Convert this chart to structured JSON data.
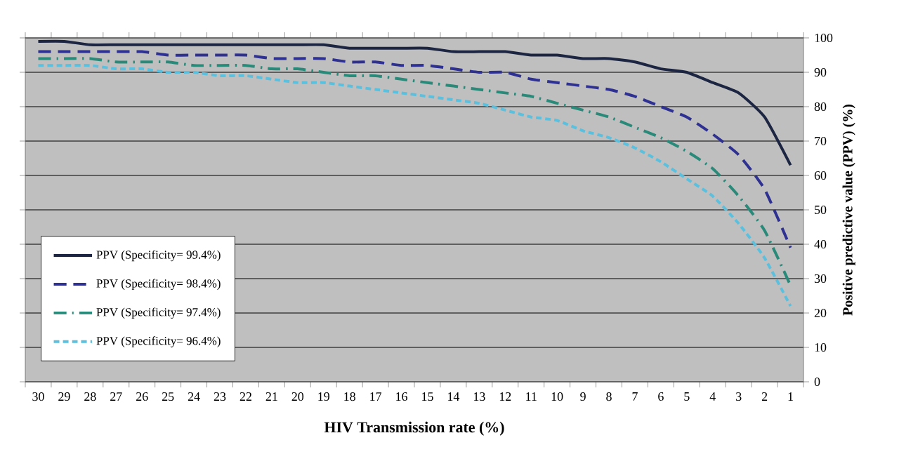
{
  "chart_data": {
    "type": "line",
    "xlabel": "HIV Transmission rate (%)",
    "ylabel": "Positive predictive value (PPV) (%)",
    "categories": [
      "30",
      "29",
      "28",
      "27",
      "26",
      "25",
      "24",
      "23",
      "22",
      "21",
      "20",
      "19",
      "18",
      "17",
      "16",
      "15",
      "14",
      "13",
      "12",
      "11",
      "10",
      "9",
      "8",
      "7",
      "6",
      "5",
      "4",
      "3",
      "2",
      "1"
    ],
    "series": [
      {
        "name": "PPV (Specificity= 99.4%)",
        "color": "#1c2541",
        "line_style": "solid",
        "values": [
          99,
          99,
          98,
          98,
          98,
          98,
          98,
          98,
          98,
          98,
          98,
          98,
          97,
          97,
          97,
          97,
          96,
          96,
          96,
          95,
          95,
          94,
          94,
          93,
          91,
          90,
          87,
          84,
          77,
          63
        ]
      },
      {
        "name": "PPV (Specificity= 98.4%)",
        "color": "#2e3192",
        "line_style": "dashed",
        "values": [
          96,
          96,
          96,
          96,
          96,
          95,
          95,
          95,
          95,
          94,
          94,
          94,
          93,
          93,
          92,
          92,
          91,
          90,
          90,
          88,
          87,
          86,
          85,
          83,
          80,
          77,
          72,
          66,
          56,
          39
        ]
      },
      {
        "name": "PPV (Specificity= 97.4%)",
        "color": "#2a8a7a",
        "line_style": "dashed",
        "values": [
          94,
          94,
          94,
          93,
          93,
          93,
          92,
          92,
          92,
          91,
          91,
          90,
          89,
          89,
          88,
          87,
          86,
          85,
          84,
          83,
          81,
          79,
          77,
          74,
          71,
          67,
          62,
          54,
          44,
          28
        ]
      },
      {
        "name": "PPV (Specificity= 96.4%)",
        "color": "#5bc0de",
        "line_style": "dotted",
        "values": [
          92,
          92,
          92,
          91,
          91,
          90,
          90,
          89,
          89,
          88,
          87,
          87,
          86,
          85,
          84,
          83,
          82,
          81,
          79,
          77,
          76,
          73,
          71,
          68,
          64,
          59,
          54,
          46,
          36,
          22
        ]
      }
    ],
    "ylim": [
      0,
      100
    ],
    "yticks": [
      0,
      10,
      20,
      30,
      40,
      50,
      60,
      70,
      80,
      90,
      100
    ],
    "grid": "y",
    "legend": "bottom left",
    "marker": "none"
  }
}
